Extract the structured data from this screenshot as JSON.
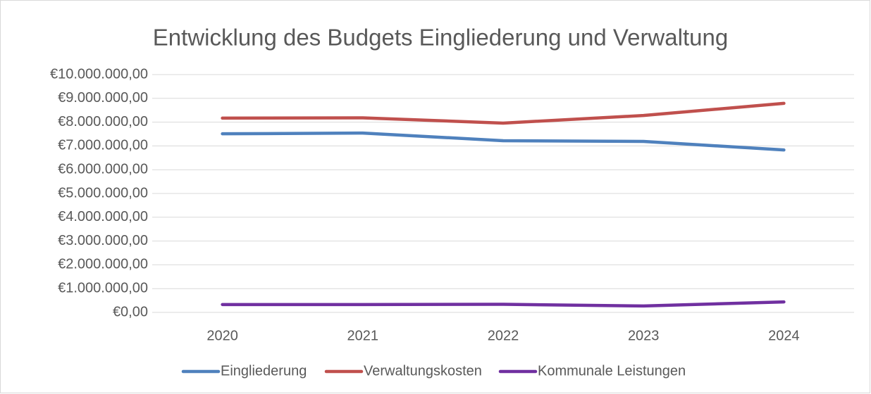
{
  "chart_data": {
    "type": "line",
    "title": "Entwicklung des Budgets Eingliederung und Verwaltung",
    "categories": [
      "2020",
      "2021",
      "2022",
      "2023",
      "2024"
    ],
    "series": [
      {
        "name": "Eingliederung",
        "color": "#4f81bd",
        "values": [
          7510000,
          7540000,
          7220000,
          7190000,
          6830000
        ]
      },
      {
        "name": "Verwaltungskosten",
        "color": "#c0504d",
        "values": [
          8170000,
          8180000,
          7960000,
          8280000,
          8790000
        ]
      },
      {
        "name": "Kommunale Leistungen",
        "color": "#7030a0",
        "values": [
          330000,
          330000,
          340000,
          270000,
          440000
        ]
      }
    ],
    "ylim": [
      0,
      10000000
    ],
    "yticks": [
      {
        "value": 0,
        "label": "€0,00"
      },
      {
        "value": 1000000,
        "label": "€1.000.000,00"
      },
      {
        "value": 2000000,
        "label": "€2.000.000,00"
      },
      {
        "value": 3000000,
        "label": "€3.000.000,00"
      },
      {
        "value": 4000000,
        "label": "€4.000.000,00"
      },
      {
        "value": 5000000,
        "label": "€5.000.000,00"
      },
      {
        "value": 6000000,
        "label": "€6.000.000,00"
      },
      {
        "value": 7000000,
        "label": "€7.000.000,00"
      },
      {
        "value": 8000000,
        "label": "€8.000.000,00"
      },
      {
        "value": 9000000,
        "label": "€9.000.000,00"
      },
      {
        "value": 10000000,
        "label": "€10.000.000,00"
      }
    ],
    "grid": true,
    "legend": "bottom"
  }
}
